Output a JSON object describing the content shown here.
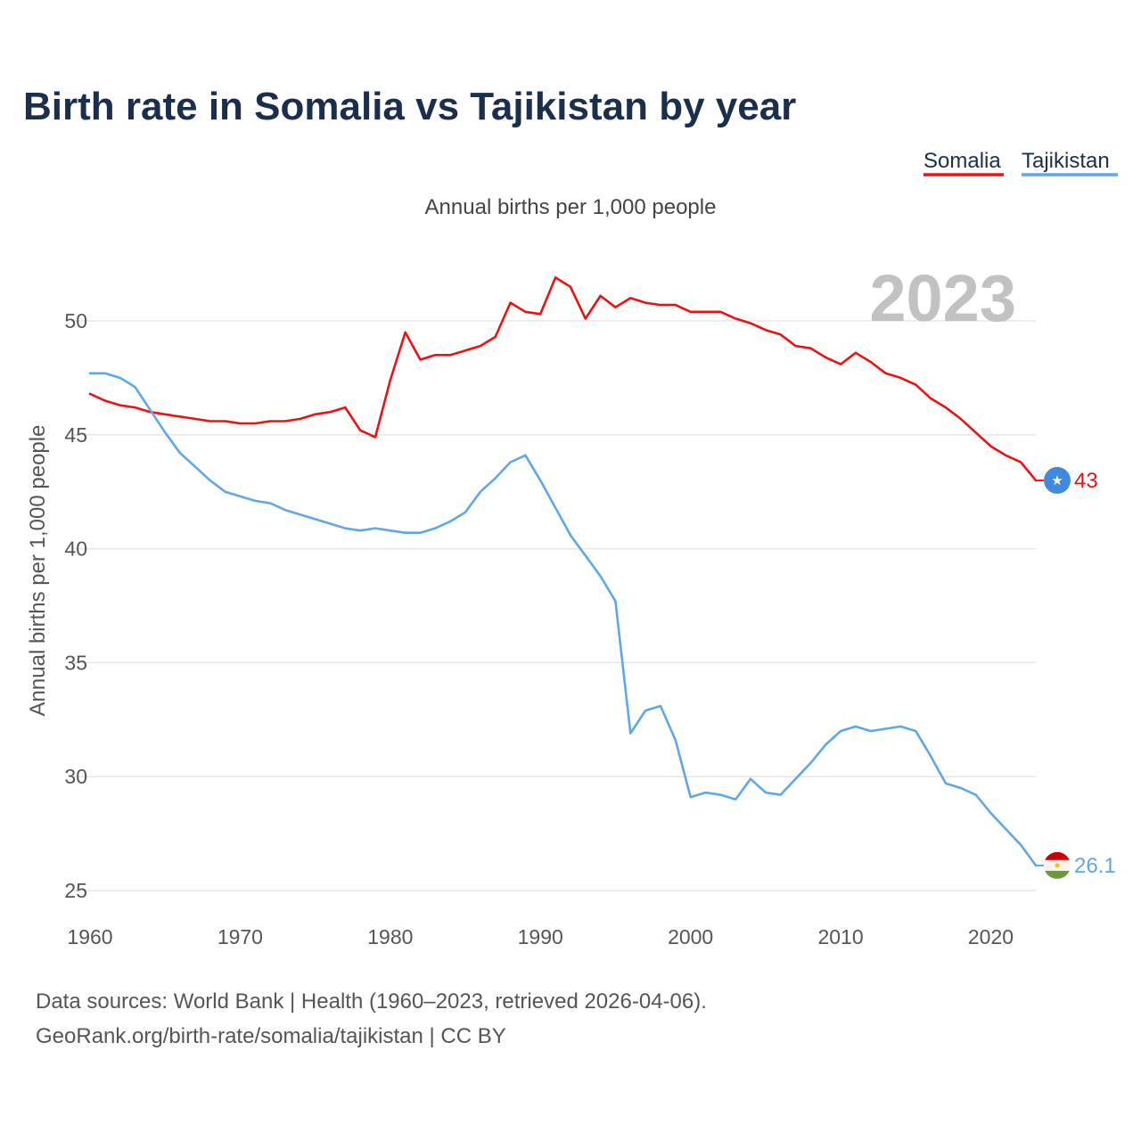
{
  "chart_data": {
    "type": "line",
    "title": "Birth rate in Somalia vs Tajikistan by year",
    "subtitle": "Annual births per 1,000 people",
    "ylabel": "Annual births per 1,000 people",
    "xlabel": "",
    "year_label": "2023",
    "xlim": [
      1960,
      2023
    ],
    "ylim": [
      25,
      52.5
    ],
    "x_ticks": [
      1960,
      1970,
      1980,
      1990,
      2000,
      2010,
      2020
    ],
    "y_ticks": [
      25,
      30,
      35,
      40,
      45,
      50
    ],
    "x": [
      1960,
      1961,
      1962,
      1963,
      1964,
      1965,
      1966,
      1967,
      1968,
      1969,
      1970,
      1971,
      1972,
      1973,
      1974,
      1975,
      1976,
      1977,
      1978,
      1979,
      1980,
      1981,
      1982,
      1983,
      1984,
      1985,
      1986,
      1987,
      1988,
      1989,
      1990,
      1991,
      1992,
      1993,
      1994,
      1995,
      1996,
      1997,
      1998,
      1999,
      2000,
      2001,
      2002,
      2003,
      2004,
      2005,
      2006,
      2007,
      2008,
      2009,
      2010,
      2011,
      2012,
      2013,
      2014,
      2015,
      2016,
      2017,
      2018,
      2019,
      2020,
      2021,
      2022,
      2023
    ],
    "series": [
      {
        "name": "Somalia",
        "color": "#ee1111",
        "end_label": "43",
        "values": [
          46.8,
          46.5,
          46.3,
          46.2,
          46.0,
          45.9,
          45.8,
          45.7,
          45.6,
          45.6,
          45.5,
          45.5,
          45.6,
          45.6,
          45.7,
          45.9,
          46.0,
          46.2,
          45.2,
          44.9,
          47.4,
          49.5,
          48.3,
          48.5,
          48.5,
          48.7,
          48.9,
          49.3,
          50.8,
          50.4,
          50.3,
          51.9,
          51.5,
          50.1,
          51.1,
          50.6,
          51.0,
          50.8,
          50.7,
          50.7,
          50.4,
          50.4,
          50.4,
          50.1,
          49.9,
          49.6,
          49.4,
          48.9,
          48.8,
          48.4,
          48.1,
          48.6,
          48.2,
          47.7,
          47.5,
          47.2,
          46.6,
          46.2,
          45.7,
          45.1,
          44.5,
          44.1,
          43.8,
          43.0
        ]
      },
      {
        "name": "Tajikistan",
        "color": "#5ea7e8",
        "end_label": "26.1",
        "values": [
          47.7,
          47.7,
          47.5,
          47.1,
          46.1,
          45.1,
          44.2,
          43.6,
          43.0,
          42.5,
          42.3,
          42.1,
          42.0,
          41.7,
          41.5,
          41.3,
          41.1,
          40.9,
          40.8,
          40.9,
          40.8,
          40.7,
          40.7,
          40.9,
          41.2,
          41.6,
          42.5,
          43.1,
          43.8,
          44.1,
          43.0,
          41.8,
          40.6,
          39.7,
          38.8,
          37.7,
          31.9,
          32.9,
          33.1,
          31.6,
          29.1,
          29.3,
          29.2,
          29.0,
          29.9,
          29.3,
          29.2,
          29.9,
          30.6,
          31.4,
          32.0,
          32.2,
          32.0,
          32.1,
          32.2,
          32.0,
          30.9,
          29.7,
          29.5,
          29.2,
          28.4,
          27.7,
          27.0,
          26.1
        ]
      }
    ]
  },
  "source": {
    "line1": "Data sources: World Bank | Health (1960–2023, retrieved 2026-04-06).",
    "line2": "GeoRank.org/birth-rate/somalia/tajikistan | CC BY"
  }
}
